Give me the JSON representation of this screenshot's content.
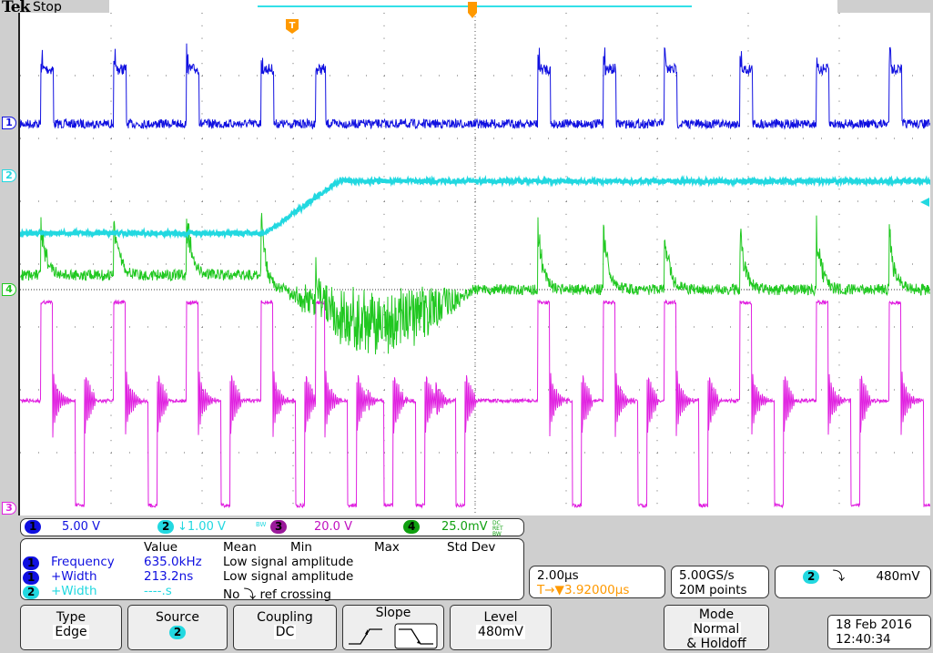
{
  "header": {
    "brand": "Tek",
    "state": "Stop"
  },
  "colors": {
    "ch1": "#1010e0",
    "ch2": "#22d8e0",
    "ch3": "#e020e0",
    "ch4": "#20c820",
    "trigger": "#ff9900",
    "ch3_badge": "#9b1a9b",
    "ch4_badge": "#10a010"
  },
  "channel_markers": {
    "ch1": "1",
    "ch2": "2",
    "ch3": "3",
    "ch4": "4"
  },
  "readout": {
    "ch1": {
      "num": "1",
      "scale": "5.00 V"
    },
    "ch2": {
      "num": "2",
      "scale": "↓1.00 V",
      "bw": "BW"
    },
    "ch3": {
      "num": "3",
      "scale": "20.0 V"
    },
    "ch4": {
      "num": "4",
      "scale": "25.0mV",
      "coupling": "DC RET BW"
    }
  },
  "measurements": {
    "headers": [
      "Value",
      "Mean",
      "Min",
      "Max",
      "Std Dev"
    ],
    "rows": [
      {
        "ch": "1",
        "name": "Frequency",
        "value": "635.0kHz",
        "status": "Low signal amplitude"
      },
      {
        "ch": "1",
        "name": "+Width",
        "value": "213.2ns",
        "status": "Low signal amplitude"
      },
      {
        "ch": "2",
        "name": "+Width",
        "value": "----.s",
        "status": "No ⤵ ref crossing"
      }
    ]
  },
  "horizontal": {
    "scale": "2.00µs",
    "delay": "T→▼3.92000µs"
  },
  "acquisition": {
    "rate": "5.00GS/s",
    "record": "20M points"
  },
  "trigger": {
    "source": "2",
    "slope": "falling",
    "level": "480mV"
  },
  "menu": {
    "type": {
      "label": "Type",
      "value": "Edge"
    },
    "source": {
      "label": "Source",
      "value": "2"
    },
    "coupling": {
      "label": "Coupling",
      "value": "DC"
    },
    "slope": {
      "label": "Slope",
      "selected": "falling"
    },
    "level": {
      "label": "Level",
      "value": "480mV"
    },
    "mode": {
      "label": "Mode",
      "value1": "Normal",
      "value2": "& Holdoff"
    }
  },
  "datetime": {
    "date": "18 Feb  2016",
    "time": "12:40:34"
  }
}
